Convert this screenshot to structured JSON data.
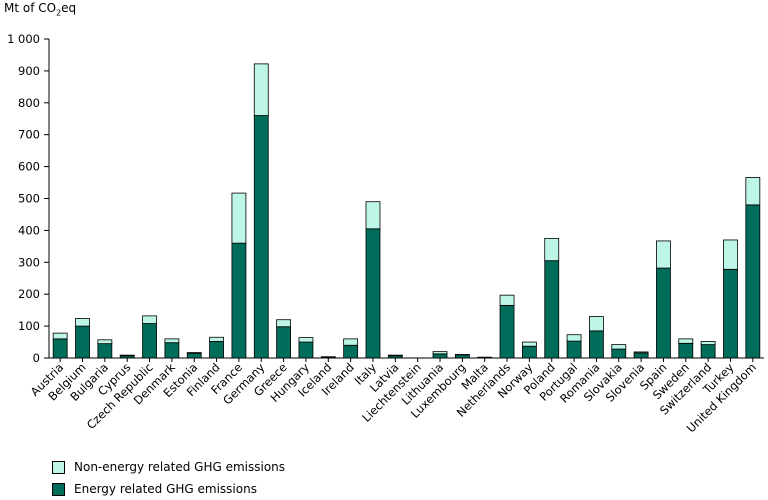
{
  "chart_data": {
    "type": "bar",
    "stacked": true,
    "ylabel_main": "Mt of CO",
    "ylabel_sub": "2",
    "ylabel_tail": "eq",
    "ylim": [
      0,
      1000
    ],
    "yticks": [
      "0",
      "100",
      "200",
      "300",
      "400",
      "500",
      "600",
      "700",
      "800",
      "900",
      "1 000"
    ],
    "ytick_values": [
      0,
      100,
      200,
      300,
      400,
      500,
      600,
      700,
      800,
      900,
      1000
    ],
    "grid": false,
    "categories": [
      "Austria",
      "Belgium",
      "Bulgaria",
      "Cyprus",
      "Czech Republic",
      "Denmark",
      "Estonia",
      "Finland",
      "France",
      "Germany",
      "Greece",
      "Hungary",
      "Iceland",
      "Ireland",
      "Italy",
      "Latvia",
      "Liechtenstein",
      "Lithuania",
      "Luxembourg",
      "Malta",
      "Netherlands",
      "Norway",
      "Poland",
      "Portugal",
      "Romania",
      "Slovakia",
      "Slovenia",
      "Spain",
      "Sweden",
      "Switzerland",
      "Turkey",
      "United Kingdom"
    ],
    "series": [
      {
        "name": "Energy related GHG emissions",
        "color": "#006c5a",
        "values": [
          60,
          100,
          45,
          7,
          108,
          48,
          15,
          52,
          360,
          760,
          98,
          50,
          3,
          40,
          405,
          7,
          0.3,
          13,
          10,
          2,
          165,
          37,
          305,
          53,
          85,
          28,
          16,
          282,
          46,
          42,
          278,
          480
        ]
      },
      {
        "name": "Non-energy related GHG emissions",
        "color": "#bdf5e6",
        "values": [
          18,
          24,
          12,
          2,
          24,
          12,
          2,
          13,
          157,
          162,
          22,
          14,
          1,
          20,
          85,
          2,
          0.1,
          7,
          1,
          0.5,
          32,
          13,
          70,
          20,
          45,
          14,
          3,
          85,
          14,
          10,
          92,
          86
        ]
      }
    ],
    "legend": {
      "placement": "bottom-left",
      "items": [
        "Non-energy related GHG emissions",
        "Energy related GHG emissions"
      ]
    }
  }
}
